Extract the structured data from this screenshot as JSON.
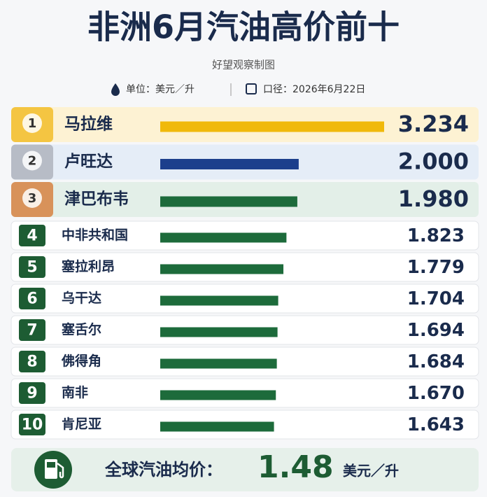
{
  "chart_data": {
    "type": "bar",
    "title": "非洲6月汽油高价前十",
    "subtitle": "好望观察制图",
    "unit_note": "单位：美元／升",
    "date_note": "口径：2026年6月22日",
    "ranks": [
      "1",
      "2",
      "3",
      "4",
      "5",
      "6",
      "7",
      "8",
      "9",
      "10"
    ],
    "categories": [
      "马拉维",
      "卢旺达",
      "津巴布韦",
      "中非共和国",
      "塞拉利昂",
      "乌干达",
      "塞舌尔",
      "佛得角",
      "南非",
      "肯尼亚"
    ],
    "values": [
      3.234,
      2.0,
      1.98,
      1.823,
      1.779,
      1.704,
      1.694,
      1.684,
      1.67,
      1.643
    ],
    "value_labels": [
      "3.234",
      "2.000",
      "1.980",
      "1.823",
      "1.779",
      "1.704",
      "1.694",
      "1.684",
      "1.670",
      "1.643"
    ],
    "colors": [
      "#f0b90b",
      "#1c3f8c",
      "#1d6b3b",
      "#1d6b3b",
      "#1d6b3b",
      "#1d6b3b",
      "#1d6b3b",
      "#1d6b3b",
      "#1d6b3b",
      "#1d6b3b"
    ],
    "average": {
      "label": "全球汽油均价：",
      "value": 1.48,
      "unit": "美元／升"
    }
  }
}
